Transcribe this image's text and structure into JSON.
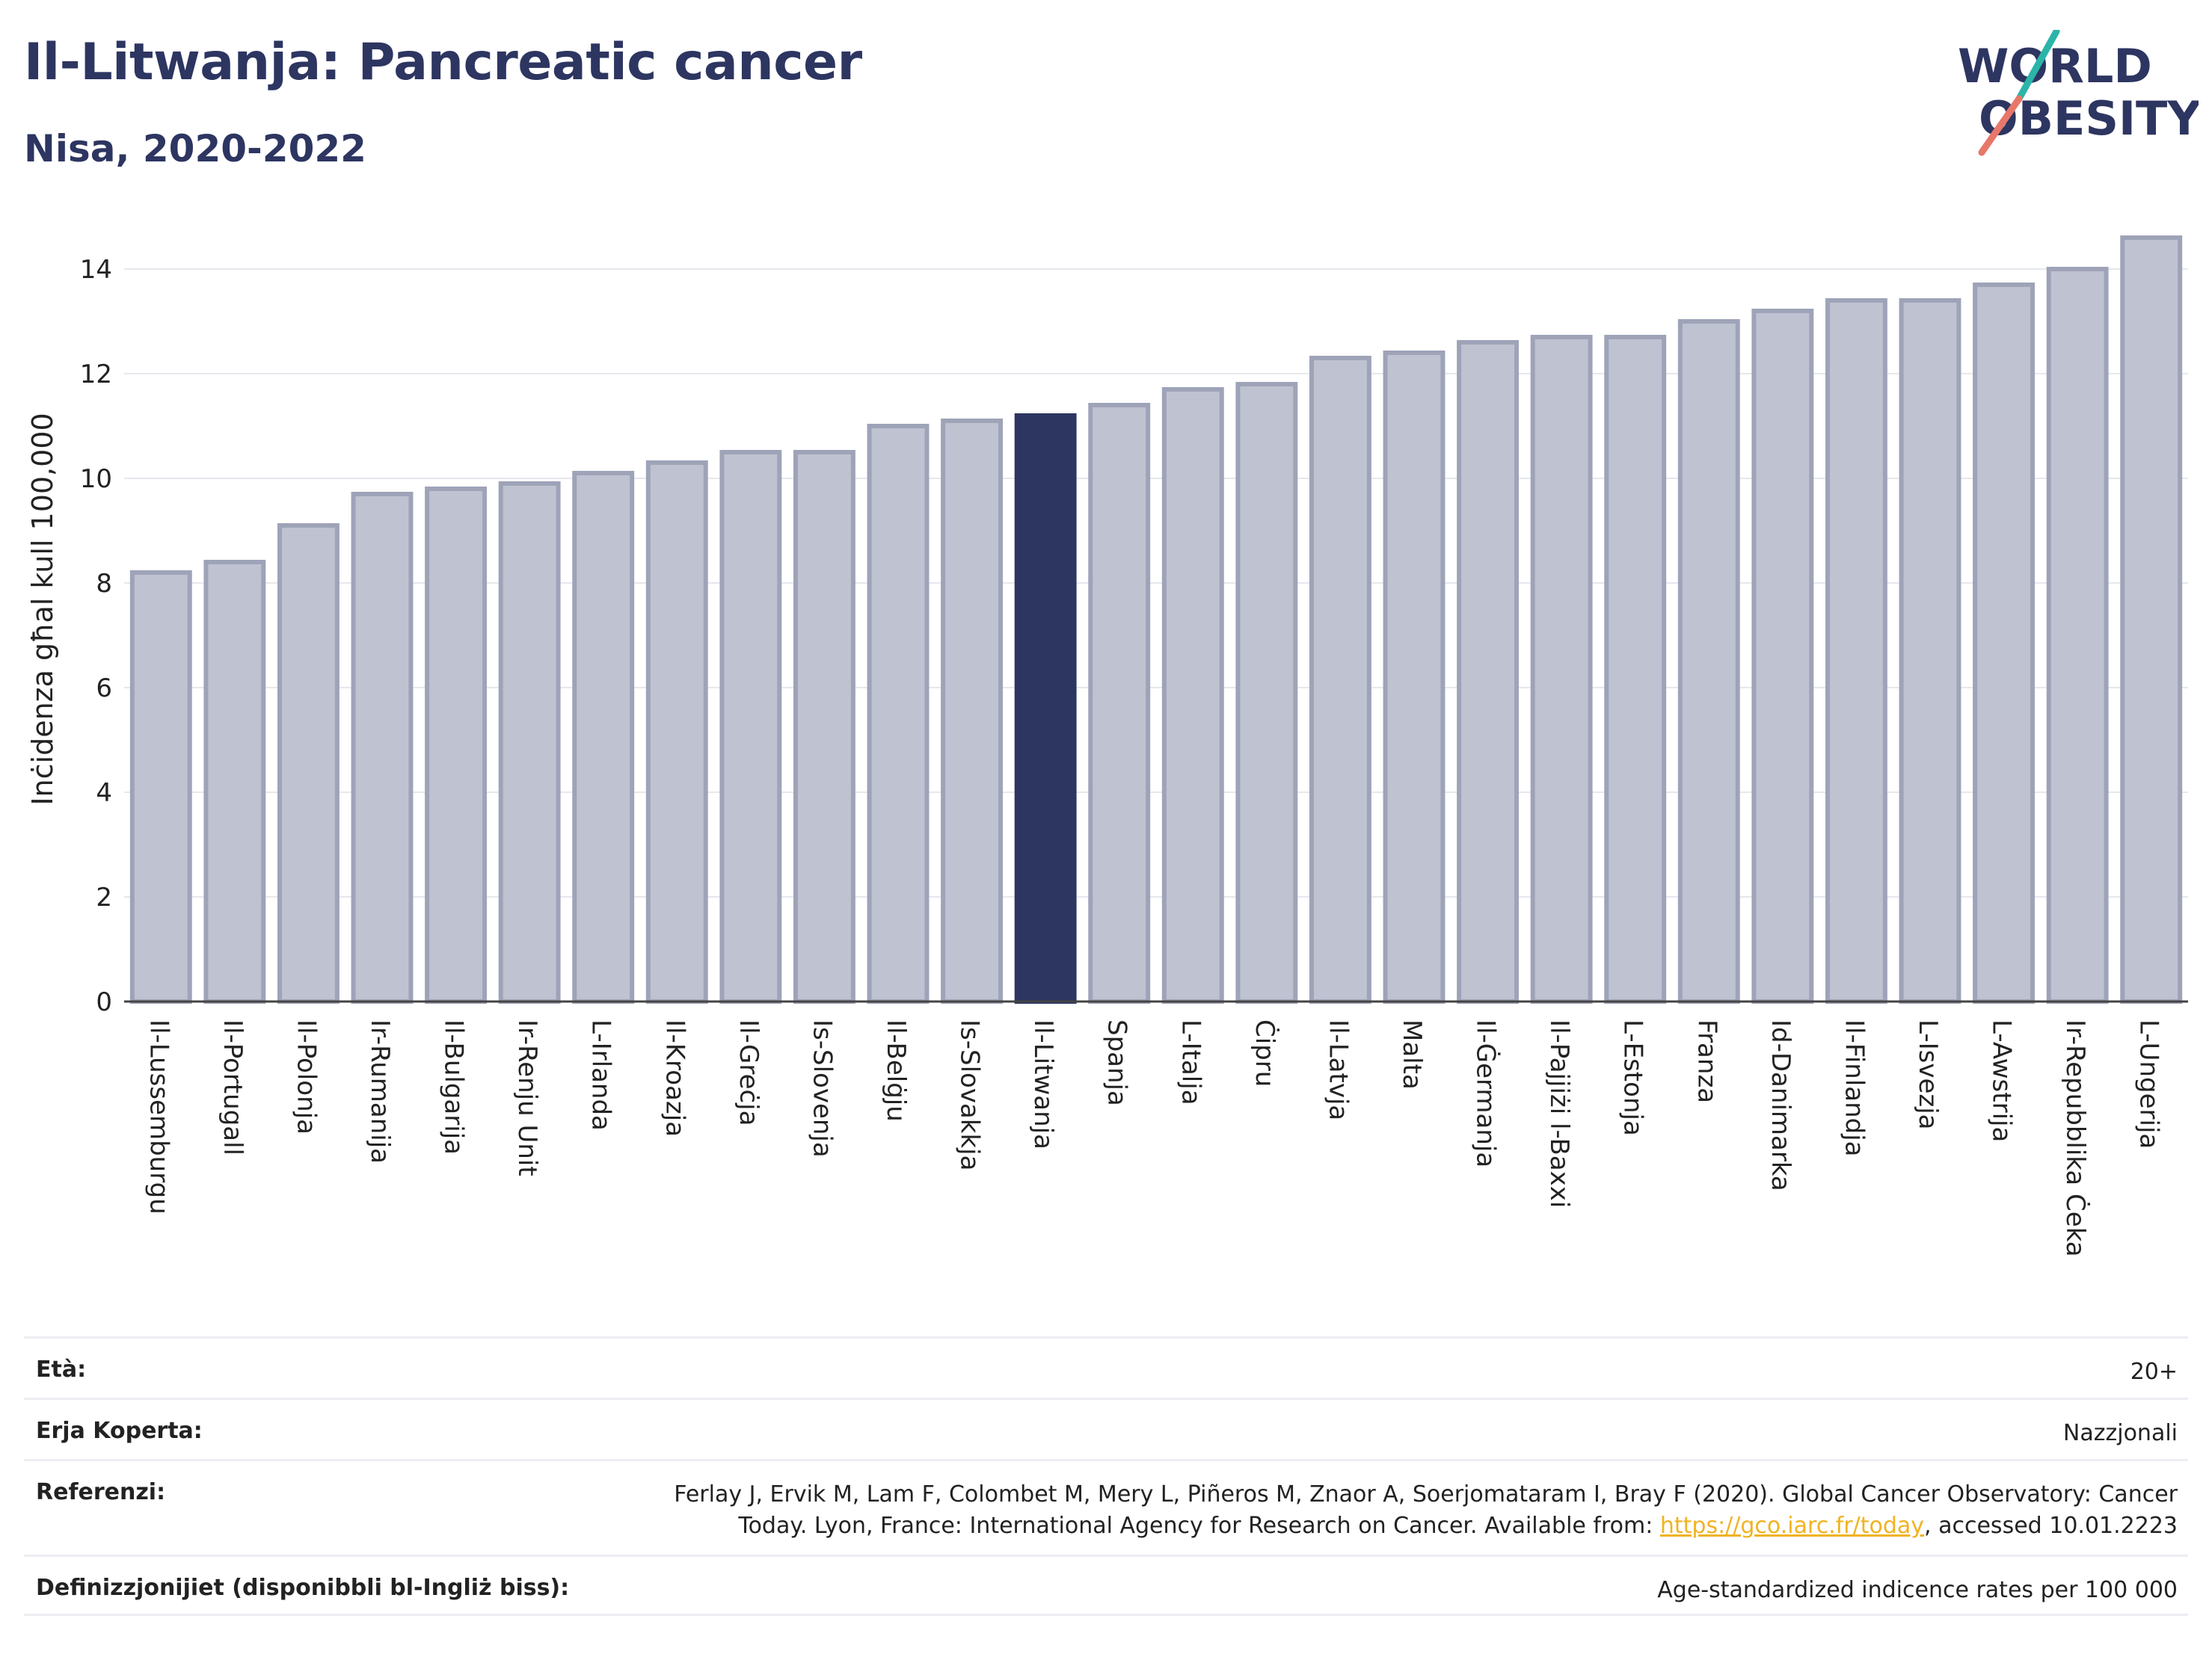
{
  "header": {
    "title": "Il-Litwanja: Pancreatic cancer",
    "subtitle": "Nisa, 2020-2022",
    "logo_line1": "WORLD",
    "logo_line2": "OBESITY"
  },
  "colors": {
    "highlight_bar": "#2d3561",
    "other_bar_fill": "#bfc2d0",
    "other_bar_stroke": "#9ea3b8",
    "title": "#2d3561",
    "logo_slash_teal": "#2bb5a8",
    "logo_slash_coral": "#e8776a",
    "link": "#f0b323"
  },
  "chart_data": {
    "type": "bar",
    "ylabel": "Inċidenza għal kull 100,000",
    "xlabel": "",
    "ylim": [
      0,
      15
    ],
    "yticks": [
      0,
      2,
      4,
      6,
      8,
      10,
      12,
      14
    ],
    "grid": true,
    "highlight": "Il-Litwanja",
    "categories": [
      "Il-Lussemburgu",
      "Il-Portugall",
      "Il-Polonja",
      "Ir-Rumanija",
      "Il-Bulgarija",
      "Ir-Renju Unit",
      "L-Irlanda",
      "Il-Kroazja",
      "Il-Greċja",
      "Is-Slovenja",
      "Il-Belġju",
      "Is-Slovakkja",
      "Il-Litwanja",
      "Spanja",
      "L-Italja",
      "Ċipru",
      "Il-Latvja",
      "Malta",
      "Il-Ġermanja",
      "Il-Pajjiżi l-Baxxi",
      "L-Estonja",
      "Franza",
      "Id-Danimarka",
      "Il-Finlandja",
      "L-Isvezja",
      "L-Awstrija",
      "Ir-Repubblika Ċeka",
      "L-Ungerija"
    ],
    "values": [
      8.2,
      8.4,
      9.1,
      9.7,
      9.8,
      9.9,
      10.1,
      10.3,
      10.5,
      10.5,
      11.0,
      11.1,
      11.2,
      11.4,
      11.7,
      11.8,
      12.3,
      12.4,
      12.6,
      12.7,
      12.7,
      13.0,
      13.2,
      13.4,
      13.4,
      13.7,
      14.0,
      14.6
    ]
  },
  "meta": {
    "age_label": "Età:",
    "age_value": "20+",
    "coverage_label": "Erja Koperta:",
    "coverage_value": "Nazzjonali",
    "references_label": "Referenzi:",
    "references_line1": "Ferlay J, Ervik M, Lam F, Colombet M, Mery L, Piñeros M, Znaor A, Soerjomataram I, Bray F (2020). Global Cancer Observatory: Cancer",
    "references_line2_pre": "Today. Lyon, France: International Agency for Research on Cancer. Available from: ",
    "references_link": "https://gco.iarc.fr/today",
    "references_line2_post": ", accessed 10.01.2223",
    "definitions_label": "Definizzjonijiet (disponibbli bl-Ingliż biss):",
    "definitions_value": "Age-standardized indicence rates per 100 000"
  }
}
